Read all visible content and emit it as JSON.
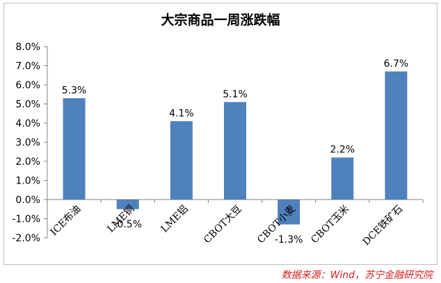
{
  "chart_data": {
    "type": "bar",
    "title": "大宗商品一周涨跌幅",
    "categories": [
      "ICE布油",
      "LME铜",
      "LME铝",
      "CBOT大豆",
      "CBOT小麦",
      "CBOT玉米",
      "DCE铁矿石"
    ],
    "values": [
      5.3,
      -0.5,
      4.1,
      5.1,
      -1.3,
      2.2,
      6.7
    ],
    "data_labels": [
      "5.3%",
      "-0.5%",
      "4.1%",
      "5.1%",
      "-1.3%",
      "2.2%",
      "6.7%"
    ],
    "y_ticks": [
      8.0,
      7.0,
      6.0,
      5.0,
      4.0,
      3.0,
      2.0,
      1.0,
      0.0,
      -1.0,
      -2.0
    ],
    "y_tick_labels": [
      "8.0%",
      "7.0%",
      "6.0%",
      "5.0%",
      "4.0%",
      "3.0%",
      "2.0%",
      "1.0%",
      "0.0%",
      "-1.0%",
      "-2.0%"
    ],
    "ylim": [
      -2.0,
      8.0
    ],
    "xlabel": "",
    "ylabel": "",
    "grid": false,
    "legend": "none",
    "bar_color": "#4f81bd"
  },
  "source": "数据来源：Wind，苏宁金融研究院",
  "colors": {
    "source_text": "#d62020",
    "axis": "#808080"
  }
}
